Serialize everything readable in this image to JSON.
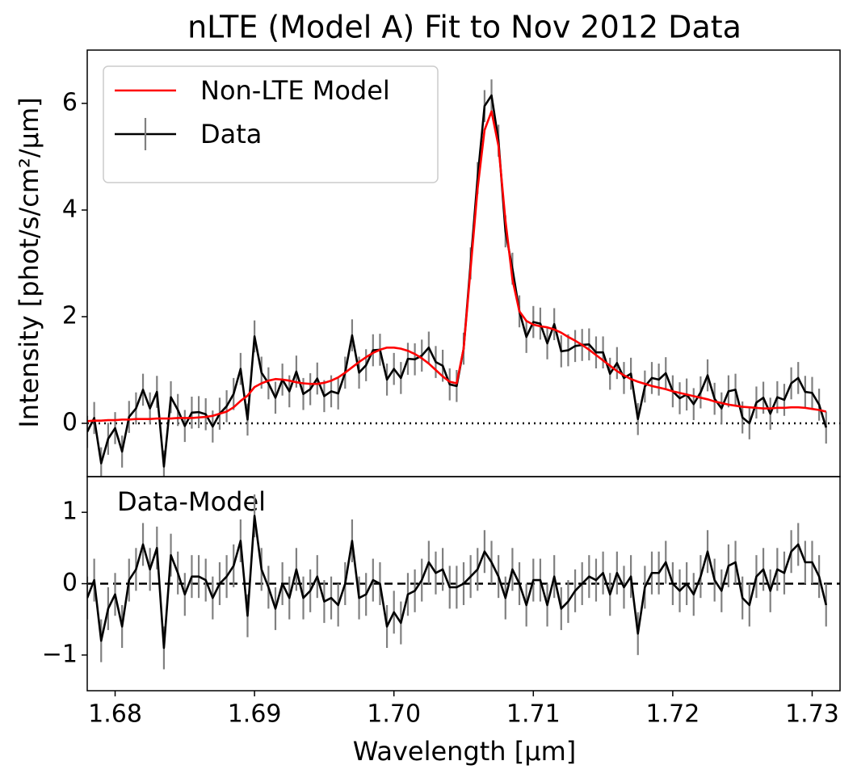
{
  "chart_data": [
    {
      "type": "line",
      "title": "nLTE (Model A) Fit to Nov 2012 Data",
      "ylabel": "Intensity [phot/s/cm²/μm]",
      "x": [
        1.678,
        1.6785,
        1.679,
        1.6795,
        1.68,
        1.6805,
        1.681,
        1.6815,
        1.682,
        1.6825,
        1.683,
        1.6835,
        1.684,
        1.6845,
        1.685,
        1.6855,
        1.686,
        1.6865,
        1.687,
        1.6875,
        1.688,
        1.6885,
        1.689,
        1.6895,
        1.69,
        1.6905,
        1.691,
        1.6915,
        1.692,
        1.6925,
        1.693,
        1.6935,
        1.694,
        1.6945,
        1.695,
        1.6955,
        1.696,
        1.6965,
        1.697,
        1.6975,
        1.698,
        1.6985,
        1.699,
        1.6995,
        1.7,
        1.7005,
        1.701,
        1.7015,
        1.702,
        1.7025,
        1.703,
        1.7035,
        1.704,
        1.7045,
        1.705,
        1.7055,
        1.706,
        1.7065,
        1.707,
        1.7075,
        1.708,
        1.7085,
        1.709,
        1.7095,
        1.71,
        1.7105,
        1.711,
        1.7115,
        1.712,
        1.7125,
        1.713,
        1.7135,
        1.714,
        1.7145,
        1.715,
        1.7155,
        1.716,
        1.7165,
        1.717,
        1.7175,
        1.718,
        1.7185,
        1.719,
        1.7195,
        1.72,
        1.7205,
        1.721,
        1.7215,
        1.722,
        1.7225,
        1.723,
        1.7235,
        1.724,
        1.7245,
        1.725,
        1.7255,
        1.726,
        1.7265,
        1.727,
        1.7275,
        1.728,
        1.7285,
        1.729,
        1.7295,
        1.73,
        1.7305,
        1.731
      ],
      "series": [
        {
          "name": "Non-LTE Model",
          "color": "#ff0000",
          "values": [
            0.04,
            0.05,
            0.05,
            0.06,
            0.06,
            0.07,
            0.07,
            0.08,
            0.08,
            0.08,
            0.09,
            0.09,
            0.09,
            0.1,
            0.1,
            0.1,
            0.11,
            0.12,
            0.14,
            0.18,
            0.22,
            0.3,
            0.42,
            0.52,
            0.68,
            0.75,
            0.8,
            0.83,
            0.82,
            0.8,
            0.77,
            0.75,
            0.74,
            0.74,
            0.76,
            0.8,
            0.86,
            0.95,
            1.05,
            1.15,
            1.24,
            1.32,
            1.38,
            1.42,
            1.42,
            1.4,
            1.36,
            1.3,
            1.22,
            1.12,
            1.0,
            0.88,
            0.78,
            0.75,
            1.4,
            2.9,
            4.4,
            5.5,
            5.85,
            5.2,
            3.8,
            2.7,
            2.1,
            1.92,
            1.85,
            1.82,
            1.8,
            1.76,
            1.7,
            1.62,
            1.55,
            1.47,
            1.38,
            1.28,
            1.18,
            1.08,
            0.98,
            0.9,
            0.83,
            0.78,
            0.74,
            0.7,
            0.67,
            0.64,
            0.6,
            0.57,
            0.54,
            0.51,
            0.48,
            0.45,
            0.41,
            0.38,
            0.35,
            0.33,
            0.31,
            0.3,
            0.29,
            0.28,
            0.28,
            0.29,
            0.29,
            0.3,
            0.3,
            0.29,
            0.27,
            0.25,
            0.22
          ]
        },
        {
          "name": "Data",
          "color": "#000000",
          "error_color": "#808080",
          "errors": 0.3,
          "values": [
            -0.16,
            0.1,
            -0.75,
            -0.29,
            -0.09,
            -0.53,
            0.12,
            0.28,
            0.63,
            0.28,
            0.59,
            -0.81,
            0.49,
            0.25,
            -0.05,
            0.2,
            0.21,
            0.17,
            -0.06,
            0.18,
            0.32,
            0.55,
            1.02,
            0.07,
            1.63,
            0.95,
            0.75,
            0.48,
            0.82,
            0.6,
            0.97,
            0.55,
            0.64,
            0.84,
            0.51,
            0.6,
            0.56,
            0.95,
            1.65,
            0.95,
            1.09,
            1.37,
            1.38,
            0.82,
            1.02,
            0.85,
            1.21,
            1.2,
            1.27,
            1.42,
            1.15,
            1.08,
            0.73,
            0.7,
            1.4,
            3.0,
            4.6,
            5.95,
            6.15,
            5.3,
            3.6,
            2.9,
            2.1,
            1.62,
            1.9,
            1.87,
            1.5,
            1.86,
            1.35,
            1.37,
            1.45,
            1.47,
            1.48,
            1.33,
            1.33,
            0.93,
            1.13,
            0.85,
            0.93,
            0.08,
            0.69,
            0.85,
            0.82,
            0.94,
            0.6,
            0.47,
            0.54,
            0.36,
            0.58,
            0.9,
            0.46,
            0.28,
            0.6,
            0.63,
            0.11,
            0.0,
            0.39,
            0.48,
            0.18,
            0.49,
            0.44,
            0.75,
            0.85,
            0.59,
            0.57,
            0.35,
            -0.08
          ]
        }
      ],
      "xlim": [
        1.678,
        1.732
      ],
      "ylim": [
        -1,
        7
      ],
      "yticks": [
        0,
        2,
        4,
        6
      ],
      "hline": {
        "value": 0,
        "style": "dotted"
      },
      "legend": "upper left"
    },
    {
      "type": "line",
      "annotation": "Data-Model",
      "xlabel": "Wavelength [μm]",
      "x": [
        1.678,
        1.6785,
        1.679,
        1.6795,
        1.68,
        1.6805,
        1.681,
        1.6815,
        1.682,
        1.6825,
        1.683,
        1.6835,
        1.684,
        1.6845,
        1.685,
        1.6855,
        1.686,
        1.6865,
        1.687,
        1.6875,
        1.688,
        1.6885,
        1.689,
        1.6895,
        1.69,
        1.6905,
        1.691,
        1.6915,
        1.692,
        1.6925,
        1.693,
        1.6935,
        1.694,
        1.6945,
        1.695,
        1.6955,
        1.696,
        1.6965,
        1.697,
        1.6975,
        1.698,
        1.6985,
        1.699,
        1.6995,
        1.7,
        1.7005,
        1.701,
        1.7015,
        1.702,
        1.7025,
        1.703,
        1.7035,
        1.704,
        1.7045,
        1.705,
        1.7055,
        1.706,
        1.7065,
        1.707,
        1.7075,
        1.708,
        1.7085,
        1.709,
        1.7095,
        1.71,
        1.7105,
        1.711,
        1.7115,
        1.712,
        1.7125,
        1.713,
        1.7135,
        1.714,
        1.7145,
        1.715,
        1.7155,
        1.716,
        1.7165,
        1.717,
        1.7175,
        1.718,
        1.7185,
        1.719,
        1.7195,
        1.72,
        1.7205,
        1.721,
        1.7215,
        1.722,
        1.7225,
        1.723,
        1.7235,
        1.724,
        1.7245,
        1.725,
        1.7255,
        1.726,
        1.7265,
        1.727,
        1.7275,
        1.728,
        1.7285,
        1.729,
        1.7295,
        1.73,
        1.7305,
        1.731
      ],
      "series": [
        {
          "color": "#000000",
          "error_color": "#808080",
          "errors": 0.3,
          "values": [
            -0.2,
            0.05,
            -0.8,
            -0.35,
            -0.15,
            -0.6,
            0.05,
            0.2,
            0.55,
            0.2,
            0.5,
            -0.9,
            0.4,
            0.15,
            -0.15,
            0.1,
            0.1,
            0.05,
            -0.2,
            0.0,
            0.1,
            0.25,
            0.6,
            -0.45,
            0.95,
            0.2,
            -0.05,
            -0.35,
            0.0,
            -0.2,
            0.2,
            -0.2,
            -0.1,
            0.1,
            -0.25,
            -0.2,
            -0.3,
            0.0,
            0.6,
            -0.2,
            -0.15,
            0.05,
            0.0,
            -0.6,
            -0.4,
            -0.55,
            -0.15,
            -0.1,
            0.05,
            0.3,
            0.15,
            0.2,
            -0.05,
            -0.05,
            0.0,
            0.1,
            0.2,
            0.45,
            0.3,
            0.1,
            -0.2,
            0.2,
            0.0,
            -0.3,
            0.05,
            0.05,
            -0.3,
            0.1,
            -0.35,
            -0.25,
            -0.1,
            0.0,
            0.1,
            0.05,
            0.15,
            -0.15,
            0.15,
            -0.05,
            0.1,
            -0.7,
            -0.05,
            0.15,
            0.15,
            0.3,
            0.0,
            -0.1,
            0.0,
            -0.15,
            0.1,
            0.45,
            0.05,
            -0.1,
            0.25,
            0.3,
            -0.2,
            -0.3,
            0.1,
            0.2,
            -0.1,
            0.2,
            0.15,
            0.45,
            0.55,
            0.3,
            0.3,
            0.1,
            -0.3
          ]
        }
      ],
      "xlim": [
        1.678,
        1.732
      ],
      "xticks": [
        1.68,
        1.69,
        {
          "value": 1.7,
          "label": "1.70"
        },
        1.71,
        1.72,
        1.73
      ],
      "ylim": [
        -1.5,
        1.5
      ],
      "yticks": [
        {
          "value": -1,
          "label": "−1"
        },
        0,
        1
      ],
      "hline": {
        "value": 0,
        "style": "dashed"
      }
    }
  ]
}
